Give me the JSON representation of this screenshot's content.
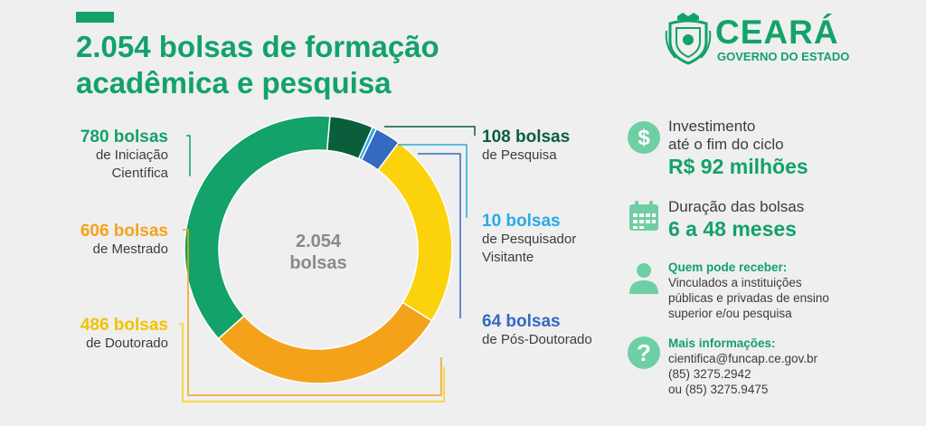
{
  "title": "2.054 bolsas de formação\nacadêmica e pesquisa",
  "logo": {
    "name": "CEARÁ",
    "subtitle": "GOVERNO DO ESTADO"
  },
  "chart_data": {
    "type": "pie",
    "style": "donut",
    "center_label": {
      "value": "2.054",
      "unit": "bolsas"
    },
    "total": 2054,
    "slices": [
      {
        "value": 108,
        "label": "108 bolsas",
        "desc": "de Pesquisa",
        "color": "#0b5e3c"
      },
      {
        "value": 10,
        "label": "10 bolsas",
        "desc": "de Pesquisador\nVisitante",
        "color": "#26abe3"
      },
      {
        "value": 64,
        "label": "64 bolsas",
        "desc": "de Pós-Doutorado",
        "color": "#3569c2"
      },
      {
        "value": 486,
        "label": "486 bolsas",
        "desc": "de Doutorado",
        "color": "#fcd20c"
      },
      {
        "value": 606,
        "label": "606 bolsas",
        "desc": "de Mestrado",
        "color": "#f5a21b"
      },
      {
        "value": 780,
        "label": "780 bolsas",
        "desc": "de Iniciação\nCientífica",
        "color": "#12a26a"
      }
    ]
  },
  "info": {
    "investment": {
      "label": "Investimento\naté o fim do ciclo",
      "value": "R$ 92 milhões",
      "icon": "dollar-icon"
    },
    "duration": {
      "label": "Duração das bolsas",
      "value": "6 a 48 meses",
      "icon": "calendar-icon"
    },
    "who": {
      "heading": "Quem pode receber:",
      "text": "Vinculados a instituições\npúblicas e privadas de ensino\nsuperior e/ou pesquisa",
      "icon": "person-icon"
    },
    "more": {
      "heading": "Mais informações:",
      "text": "cientifica@funcap.ce.gov.br\n(85) 3275.2942\nou (85) 3275.9475",
      "icon": "question-icon"
    }
  },
  "colors": {
    "brand": "#12a26a",
    "icon_bg": "#6fcfa4"
  }
}
